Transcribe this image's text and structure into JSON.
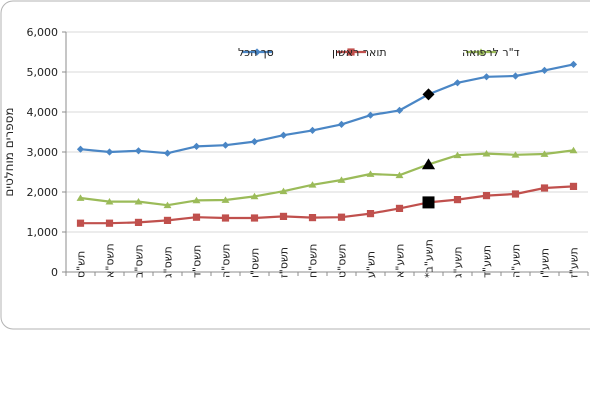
{
  "chart_data": {
    "type": "line",
    "title": "",
    "xlabel": "",
    "ylabel": "מספרים מוחלטים",
    "ylim": [
      0,
      6000
    ],
    "yticks": [
      "0",
      "1,000",
      "2,000",
      "3,000",
      "4,000",
      "5,000",
      "6,000"
    ],
    "ytick_values": [
      0,
      1000,
      2000,
      3000,
      4000,
      5000,
      6000
    ],
    "grid": true,
    "legend_position": "top",
    "categories": [
      "תש\"ס",
      "תשס\"א",
      "תשס\"ב",
      "תשס\"ג",
      "תשס\"ד",
      "תשס\"ה",
      "תשס\"ו",
      "תשס\"ז",
      "תשס\"ח",
      "תשס\"ט",
      "תש\"ע",
      "תשע\"א",
      "תשע\"ב*",
      "תשע\"ג",
      "תשע\"ד",
      "תשע\"ה",
      "תשע\"ו",
      "תשע\"ז"
    ],
    "highlight_index": 12,
    "series": [
      {
        "name": "סך הכל",
        "color": "#4a86c5",
        "marker": "diamond",
        "highlight_color": "#000000",
        "values": [
          3070,
          3000,
          3030,
          2970,
          3140,
          3170,
          3260,
          3420,
          3540,
          3690,
          3920,
          4040,
          4440,
          4730,
          4880,
          4900,
          5040,
          5190
        ]
      },
      {
        "name": "תואר ראשון",
        "color": "#c0504d",
        "marker": "square",
        "highlight_color": "#000000",
        "values": [
          1220,
          1220,
          1240,
          1290,
          1370,
          1350,
          1350,
          1390,
          1360,
          1370,
          1460,
          1590,
          1740,
          1810,
          1910,
          1950,
          2100,
          2140
        ]
      },
      {
        "name": "ד\"ר לרפואה",
        "color": "#9bbb59",
        "marker": "triangle",
        "highlight_color": "#000000",
        "values": [
          1850,
          1760,
          1760,
          1670,
          1790,
          1800,
          1890,
          2020,
          2180,
          2300,
          2450,
          2420,
          2690,
          2920,
          2960,
          2930,
          2950,
          3040
        ]
      }
    ]
  }
}
